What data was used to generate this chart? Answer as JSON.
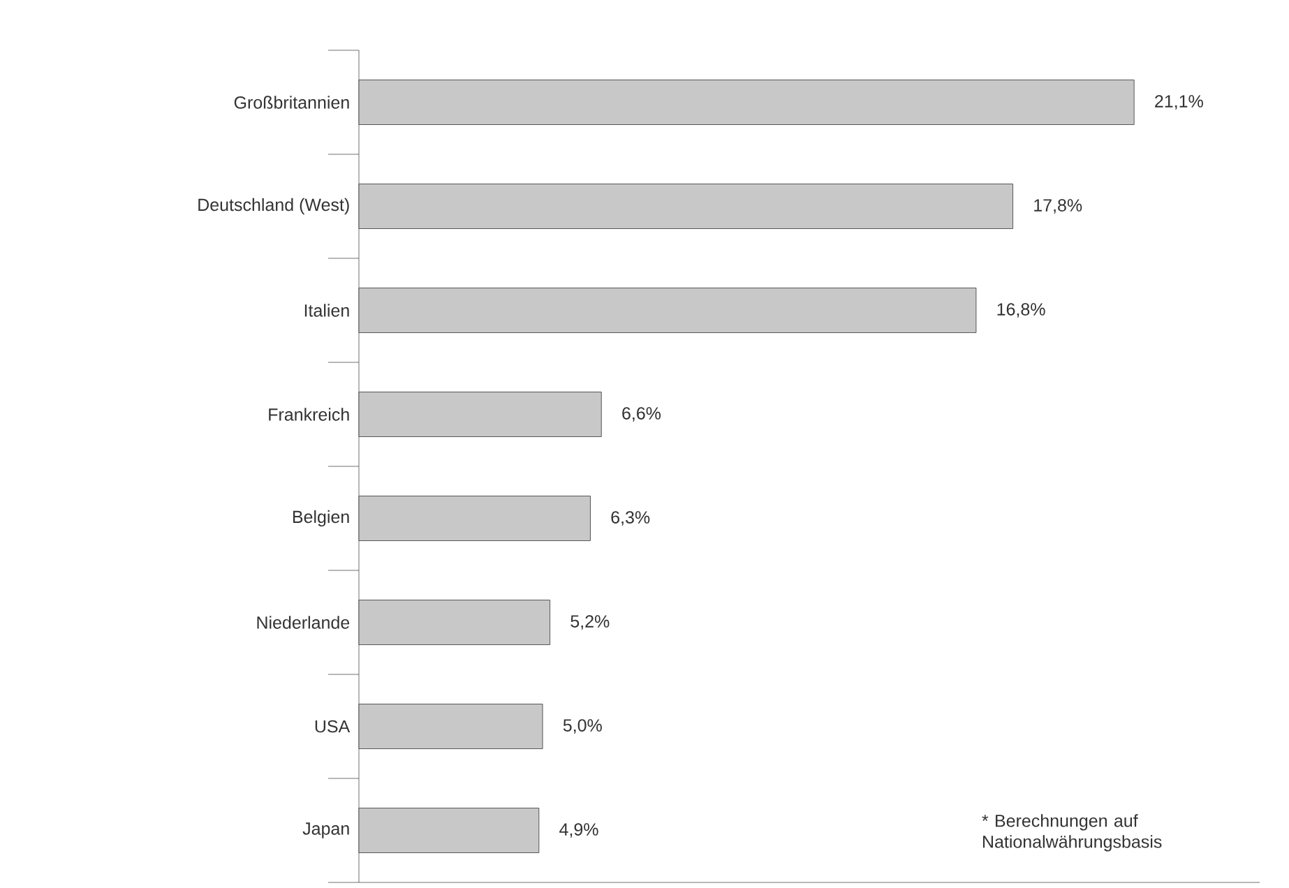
{
  "chart_data": {
    "type": "bar",
    "orientation": "horizontal",
    "categories": [
      "Großbritannien",
      "Deutschland (West)",
      "Italien",
      "Frankreich",
      "Belgien",
      "Niederlande",
      "USA",
      "Japan"
    ],
    "values": [
      21.1,
      17.8,
      16.8,
      6.6,
      6.3,
      5.2,
      5.0,
      4.9
    ],
    "value_labels": [
      "21,1%",
      "17,8%",
      "16,8%",
      "6,6%",
      "6,3%",
      "5,2%",
      "5,0%",
      "4,9%"
    ],
    "color": "#c8c8c8",
    "annotations": [
      "* Berechnungen auf Nationalwährungsbasis"
    ]
  }
}
